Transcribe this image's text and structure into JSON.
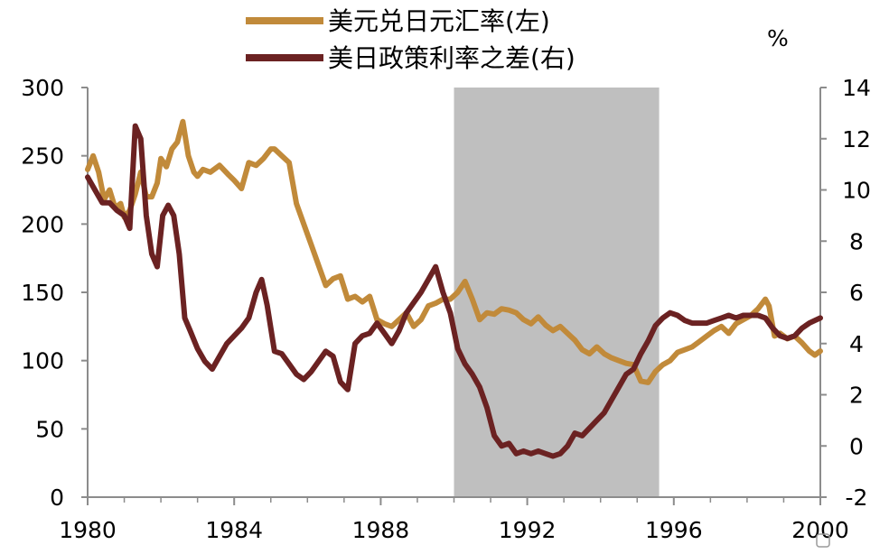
{
  "chart_data": {
    "type": "line",
    "title": "",
    "right_unit": "%",
    "x_ticks": [
      "1980",
      "1984",
      "1988",
      "1992",
      "1996",
      "2000"
    ],
    "y_left_ticks": [
      "0",
      "50",
      "100",
      "150",
      "200",
      "250",
      "300"
    ],
    "y_right_ticks": [
      "-2",
      "0",
      "2",
      "4",
      "6",
      "8",
      "10",
      "12",
      "14"
    ],
    "xlim": [
      1980,
      2000
    ],
    "ylim_left": [
      0,
      300
    ],
    "ylim_right": [
      -2,
      14
    ],
    "grid": false,
    "legend_position": "top",
    "shaded_period": {
      "start": 1990.0,
      "end": 1995.6,
      "color": "#bfbfbf"
    },
    "series": [
      {
        "name": "美元兑日元汇率(左)",
        "axis": "left",
        "color": "#c18a3a",
        "x": [
          1980.0,
          1980.15,
          1980.3,
          1980.45,
          1980.6,
          1980.75,
          1980.9,
          1981.0,
          1981.15,
          1981.3,
          1981.45,
          1981.6,
          1981.75,
          1981.9,
          1982.0,
          1982.15,
          1982.3,
          1982.45,
          1982.6,
          1982.75,
          1982.9,
          1983.0,
          1983.15,
          1983.35,
          1983.6,
          1983.85,
          1984.0,
          1984.2,
          1984.4,
          1984.6,
          1984.8,
          1985.0,
          1985.1,
          1985.3,
          1985.5,
          1985.7,
          1985.9,
          1986.1,
          1986.3,
          1986.5,
          1986.7,
          1986.9,
          1987.1,
          1987.3,
          1987.5,
          1987.7,
          1987.9,
          1988.1,
          1988.3,
          1988.5,
          1988.7,
          1988.9,
          1989.1,
          1989.3,
          1989.5,
          1989.7,
          1989.9,
          1990.1,
          1990.3,
          1990.5,
          1990.7,
          1990.9,
          1991.1,
          1991.3,
          1991.5,
          1991.7,
          1991.9,
          1992.1,
          1992.3,
          1992.5,
          1992.7,
          1992.9,
          1993.1,
          1993.3,
          1993.5,
          1993.7,
          1993.9,
          1994.1,
          1994.3,
          1994.5,
          1994.7,
          1994.9,
          1995.1,
          1995.3,
          1995.5,
          1995.7,
          1995.9,
          1996.1,
          1996.3,
          1996.5,
          1996.7,
          1996.9,
          1997.1,
          1997.3,
          1997.5,
          1997.7,
          1997.9,
          1998.1,
          1998.3,
          1998.5,
          1998.6,
          1998.75,
          1998.9,
          1999.1,
          1999.3,
          1999.5,
          1999.7,
          1999.85,
          2000.0
        ],
        "values": [
          240,
          250,
          238,
          218,
          225,
          212,
          215,
          205,
          210,
          222,
          238,
          220,
          220,
          230,
          248,
          242,
          255,
          260,
          275,
          250,
          238,
          235,
          240,
          238,
          243,
          236,
          232,
          226,
          245,
          243,
          248,
          255,
          255,
          250,
          245,
          215,
          200,
          185,
          170,
          155,
          160,
          162,
          145,
          147,
          143,
          147,
          130,
          127,
          125,
          130,
          135,
          125,
          130,
          140,
          142,
          145,
          145,
          150,
          158,
          145,
          130,
          135,
          134,
          138,
          137,
          135,
          130,
          127,
          132,
          126,
          122,
          125,
          120,
          115,
          108,
          105,
          110,
          105,
          102,
          100,
          98,
          97,
          85,
          84,
          92,
          97,
          100,
          106,
          108,
          110,
          114,
          118,
          122,
          125,
          120,
          127,
          130,
          133,
          138,
          145,
          140,
          118,
          120,
          116,
          118,
          113,
          107,
          104,
          107
        ]
      },
      {
        "name": "美日政策利率之差(右)",
        "axis": "right",
        "color": "#6b2222",
        "x": [
          1980.0,
          1980.2,
          1980.4,
          1980.6,
          1980.8,
          1981.0,
          1981.15,
          1981.3,
          1981.45,
          1981.6,
          1981.75,
          1981.9,
          1982.05,
          1982.2,
          1982.35,
          1982.5,
          1982.65,
          1982.8,
          1983.0,
          1983.2,
          1983.4,
          1983.6,
          1983.8,
          1984.0,
          1984.2,
          1984.4,
          1984.6,
          1984.75,
          1984.9,
          1985.1,
          1985.3,
          1985.5,
          1985.7,
          1985.9,
          1986.1,
          1986.3,
          1986.5,
          1986.7,
          1986.9,
          1987.1,
          1987.3,
          1987.5,
          1987.7,
          1987.9,
          1988.1,
          1988.3,
          1988.5,
          1988.7,
          1988.9,
          1989.1,
          1989.3,
          1989.5,
          1989.7,
          1989.9,
          1990.1,
          1990.3,
          1990.5,
          1990.7,
          1990.9,
          1991.1,
          1991.3,
          1991.5,
          1991.7,
          1991.9,
          1992.1,
          1992.3,
          1992.5,
          1992.7,
          1992.9,
          1993.1,
          1993.3,
          1993.5,
          1993.7,
          1993.9,
          1994.1,
          1994.3,
          1994.5,
          1994.7,
          1994.9,
          1995.1,
          1995.3,
          1995.5,
          1995.7,
          1995.9,
          1996.1,
          1996.3,
          1996.5,
          1996.7,
          1996.9,
          1997.1,
          1997.3,
          1997.5,
          1997.7,
          1997.9,
          1998.1,
          1998.3,
          1998.5,
          1998.7,
          1998.9,
          1999.1,
          1999.3,
          1999.5,
          1999.7,
          1999.85,
          2000.0
        ],
        "values": [
          10.5,
          10.0,
          9.5,
          9.5,
          9.2,
          9.0,
          8.5,
          12.5,
          12.0,
          9.0,
          7.5,
          7.0,
          9.0,
          9.4,
          9.0,
          7.5,
          5.0,
          4.5,
          3.8,
          3.3,
          3.0,
          3.5,
          4.0,
          4.3,
          4.6,
          5.0,
          6.0,
          6.5,
          5.5,
          3.7,
          3.6,
          3.2,
          2.8,
          2.6,
          2.9,
          3.3,
          3.7,
          3.5,
          2.5,
          2.2,
          4.0,
          4.3,
          4.4,
          4.8,
          4.4,
          4.0,
          4.5,
          5.2,
          5.6,
          6.0,
          6.5,
          7.0,
          6.0,
          5.2,
          3.8,
          3.2,
          2.8,
          2.3,
          1.5,
          0.4,
          0.0,
          0.1,
          -0.3,
          -0.2,
          -0.3,
          -0.2,
          -0.3,
          -0.4,
          -0.3,
          0.0,
          0.5,
          0.4,
          0.7,
          1.0,
          1.3,
          1.8,
          2.3,
          2.8,
          3.0,
          3.6,
          4.1,
          4.7,
          5.0,
          5.2,
          5.1,
          4.9,
          4.8,
          4.8,
          4.8,
          4.9,
          5.0,
          5.1,
          5.0,
          5.1,
          5.1,
          5.1,
          5.0,
          4.6,
          4.3,
          4.2,
          4.3,
          4.6,
          4.8,
          4.9,
          5.0
        ]
      }
    ]
  }
}
